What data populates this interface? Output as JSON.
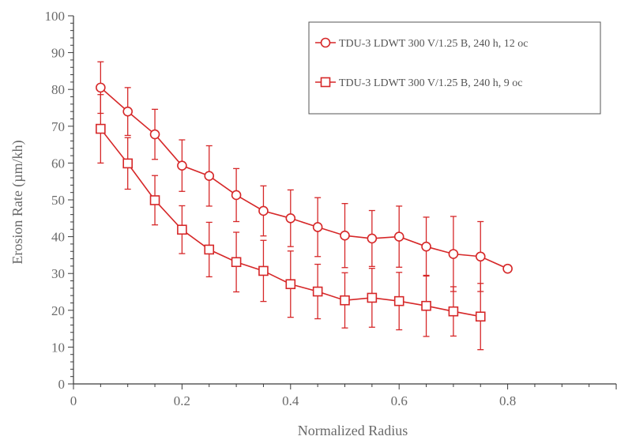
{
  "chart_data": {
    "type": "line",
    "title": "",
    "xlabel": "Normalized Radius",
    "ylabel": "Erosion Rate (µm/kh)",
    "xlim": [
      0,
      1.0
    ],
    "ylim": [
      0,
      100
    ],
    "xticks": [
      0,
      0.2,
      0.4,
      0.6,
      0.8
    ],
    "xtick_labels": [
      "0",
      "0.2",
      "0.4",
      "0.6",
      "0.8"
    ],
    "yticks": [
      0,
      10,
      20,
      30,
      40,
      50,
      60,
      70,
      80,
      90,
      100
    ],
    "ytick_labels": [
      "0",
      "10",
      "20",
      "30",
      "40",
      "50",
      "60",
      "70",
      "80",
      "90",
      "100"
    ],
    "grid": false,
    "legend_position": "top-right",
    "series": [
      {
        "name": "TDU-3 LDWT 300 V/1.25 B, 240 h, 12 oc",
        "marker": "circle",
        "color": "#d62728",
        "x": [
          0.05,
          0.1,
          0.15,
          0.2,
          0.25,
          0.3,
          0.35,
          0.4,
          0.45,
          0.5,
          0.55,
          0.6,
          0.65,
          0.7,
          0.75,
          0.8
        ],
        "y": [
          80.5,
          74,
          67.8,
          59.3,
          56.5,
          51.3,
          47,
          45,
          42.6,
          40.3,
          39.5,
          40,
          37.3,
          35.3,
          34.6,
          31.3
        ],
        "err": [
          7,
          6.5,
          6.8,
          7,
          8.2,
          7.2,
          6.8,
          7.7,
          8,
          8.7,
          7.6,
          8.3,
          8,
          10.2,
          9.5,
          null
        ]
      },
      {
        "name": "TDU-3 LDWT 300 V/1.25 B, 240 h, 9 oc",
        "marker": "square",
        "color": "#d62728",
        "x": [
          0.05,
          0.1,
          0.15,
          0.2,
          0.25,
          0.3,
          0.35,
          0.4,
          0.45,
          0.5,
          0.55,
          0.6,
          0.65,
          0.7,
          0.75
        ],
        "y": [
          69.3,
          59.9,
          49.9,
          41.9,
          36.5,
          33.1,
          30.7,
          27.1,
          25.1,
          22.7,
          23.4,
          22.5,
          21.2,
          19.7,
          18.3
        ],
        "err": [
          9.3,
          7,
          6.7,
          6.5,
          7.4,
          8.1,
          8.3,
          9,
          7.4,
          7.5,
          8,
          7.8,
          8.3,
          6.7,
          9
        ]
      }
    ]
  }
}
